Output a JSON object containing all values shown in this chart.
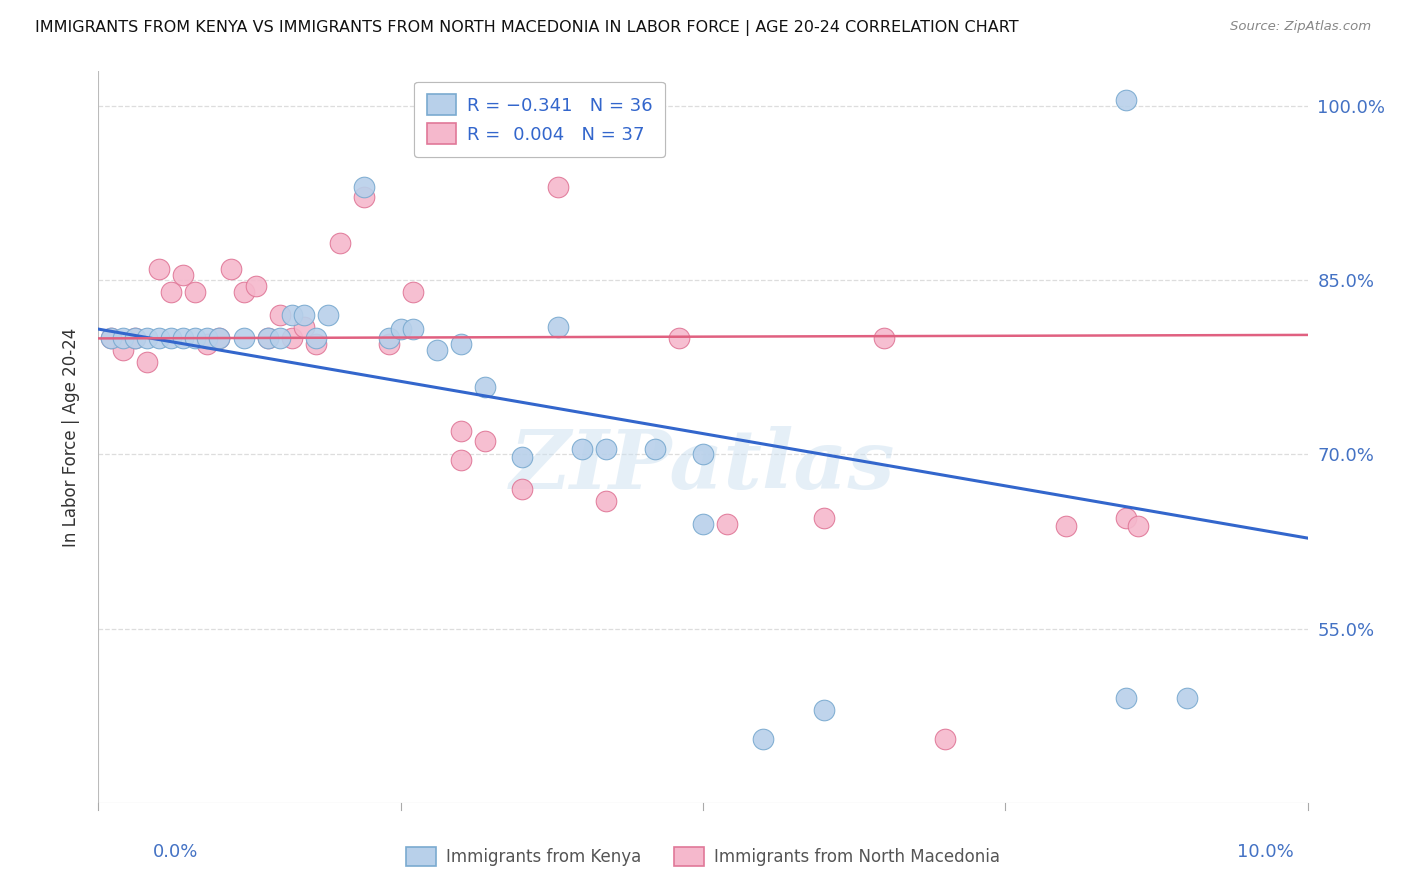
{
  "title": "IMMIGRANTS FROM KENYA VS IMMIGRANTS FROM NORTH MACEDONIA IN LABOR FORCE | AGE 20-24 CORRELATION CHART",
  "source": "Source: ZipAtlas.com",
  "ylabel": "In Labor Force | Age 20-24",
  "ytick_values": [
    1.0,
    0.85,
    0.7,
    0.55
  ],
  "xmin": 0.0,
  "xmax": 0.1,
  "ymin": 0.4,
  "ymax": 1.03,
  "kenya_color": "#b8d0ea",
  "kenya_edge_color": "#7aaad0",
  "macedonia_color": "#f5b8cc",
  "macedonia_edge_color": "#e07898",
  "trend_kenya_color": "#3366cc",
  "trend_macedonia_color": "#e06080",
  "kenya_trend_y0": 0.808,
  "kenya_trend_y1": 0.628,
  "macedonia_trend_y0": 0.8,
  "macedonia_trend_y1": 0.803,
  "kenya_x": [
    0.001,
    0.002,
    0.003,
    0.004,
    0.005,
    0.006,
    0.007,
    0.008,
    0.009,
    0.01,
    0.012,
    0.014,
    0.015,
    0.016,
    0.017,
    0.018,
    0.019,
    0.022,
    0.024,
    0.025,
    0.026,
    0.028,
    0.03,
    0.032,
    0.035,
    0.038,
    0.04,
    0.042,
    0.046,
    0.05,
    0.055,
    0.06,
    0.085,
    0.09,
    0.05,
    0.085
  ],
  "kenya_y": [
    0.8,
    0.8,
    0.8,
    0.8,
    0.8,
    0.8,
    0.8,
    0.8,
    0.8,
    0.8,
    0.8,
    0.8,
    0.8,
    0.82,
    0.82,
    0.8,
    0.82,
    0.93,
    0.8,
    0.808,
    0.808,
    0.79,
    0.795,
    0.758,
    0.698,
    0.81,
    0.705,
    0.705,
    0.705,
    0.7,
    0.455,
    0.48,
    1.005,
    0.49,
    0.64,
    0.49
  ],
  "macedonia_x": [
    0.001,
    0.002,
    0.003,
    0.004,
    0.005,
    0.006,
    0.007,
    0.008,
    0.009,
    0.01,
    0.011,
    0.012,
    0.013,
    0.014,
    0.015,
    0.016,
    0.017,
    0.018,
    0.02,
    0.022,
    0.024,
    0.026,
    0.03,
    0.032,
    0.035,
    0.038,
    0.042,
    0.048,
    0.052,
    0.06,
    0.065,
    0.07,
    0.08,
    0.085,
    0.086,
    0.03
  ],
  "macedonia_y": [
    0.8,
    0.79,
    0.8,
    0.78,
    0.86,
    0.84,
    0.855,
    0.84,
    0.795,
    0.8,
    0.86,
    0.84,
    0.845,
    0.8,
    0.82,
    0.8,
    0.81,
    0.795,
    0.882,
    0.922,
    0.795,
    0.84,
    0.72,
    0.712,
    0.67,
    0.93,
    0.66,
    0.8,
    0.64,
    0.645,
    0.8,
    0.455,
    0.638,
    0.645,
    0.638,
    0.695
  ],
  "legend_label_kenya": "Immigrants from Kenya",
  "legend_label_macedonia": "Immigrants from North Macedonia",
  "right_axis_label_color": "#4472c4",
  "bottom_axis_label_color": "#4472c4",
  "background_color": "#ffffff",
  "grid_color": "#dddddd",
  "watermark": "ZIPatlas"
}
